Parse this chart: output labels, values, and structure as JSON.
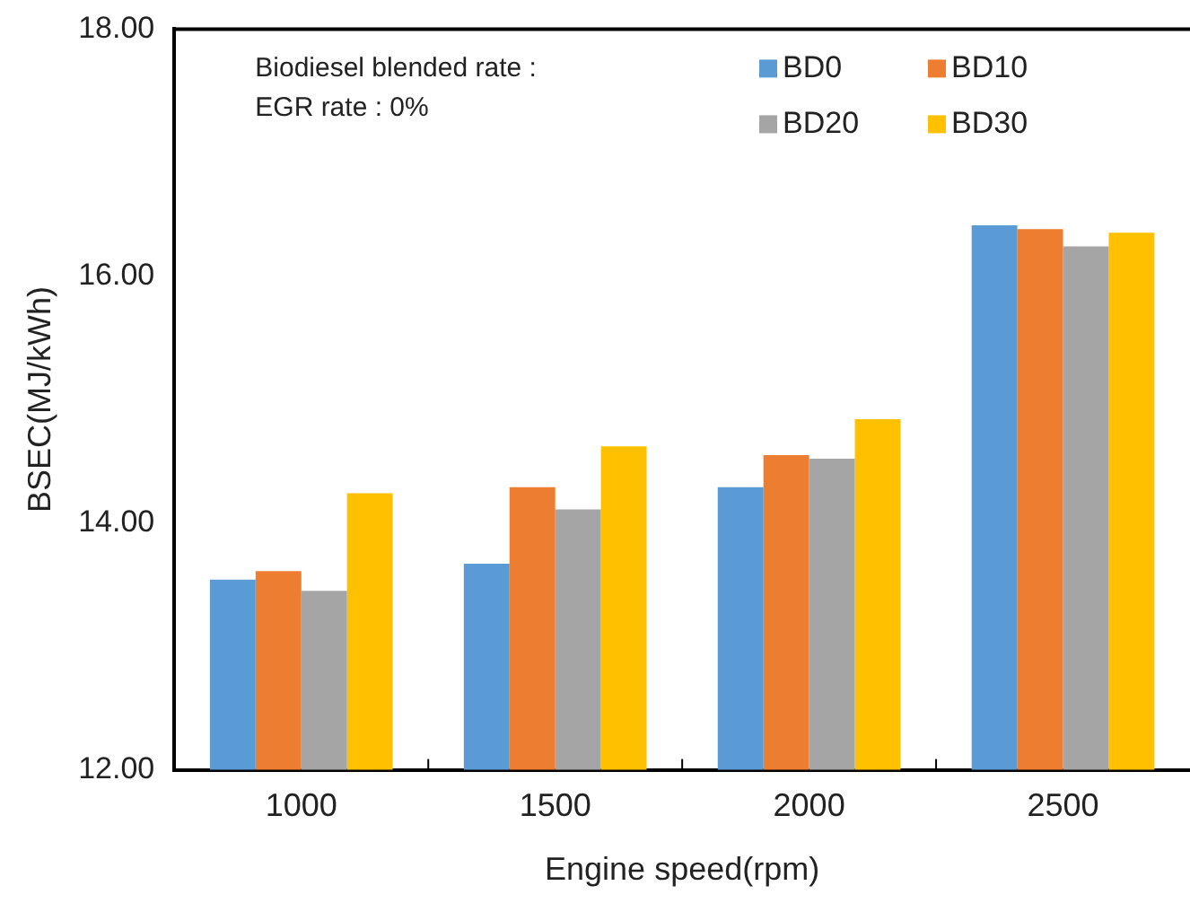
{
  "chart_data": {
    "type": "bar",
    "xlabel": "Engine speed(rpm)",
    "ylabel": "BSEC(MJ/kWh)",
    "categories": [
      "1000",
      "1500",
      "2000",
      "2500"
    ],
    "series": [
      {
        "name": "BD0",
        "color": "#5b9bd5",
        "values": [
          13.54,
          13.67,
          14.29,
          16.41
        ]
      },
      {
        "name": "BD10",
        "color": "#ed7d31",
        "values": [
          13.61,
          14.29,
          14.55,
          16.38
        ]
      },
      {
        "name": "BD20",
        "color": "#a5a5a5",
        "values": [
          13.45,
          14.11,
          14.52,
          16.24
        ]
      },
      {
        "name": "BD30",
        "color": "#ffc000",
        "values": [
          14.24,
          14.62,
          14.84,
          16.35
        ]
      }
    ],
    "ylim": [
      12,
      18
    ],
    "yticks": [
      {
        "value": 12,
        "label": "12.00"
      },
      {
        "value": 14,
        "label": "14.00"
      },
      {
        "value": 16,
        "label": "16.00"
      },
      {
        "value": 18,
        "label": "18.00"
      }
    ],
    "annotations": [
      "Biodiesel blended rate :",
      "EGR rate : 0%"
    ],
    "legend": "top right",
    "grid": false
  }
}
